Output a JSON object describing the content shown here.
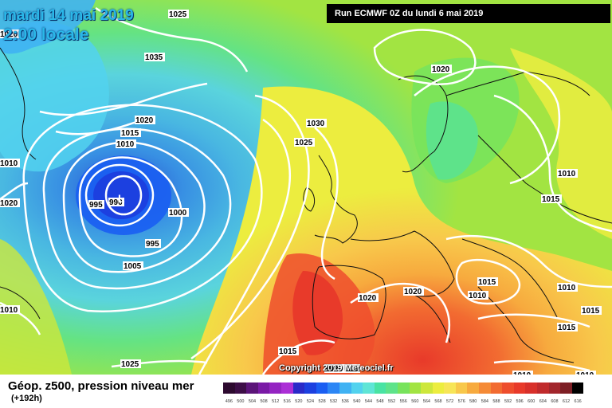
{
  "header": {
    "date": "mardi 14 mai 2019",
    "time": "2:00 locale",
    "run": "Run ECMWF 0Z du lundi 6 mai 2019"
  },
  "copyright": "Copyright 2019 Meteociel.fr",
  "footer": {
    "title": "Géop. z500, pression niveau mer",
    "subtitle": "(+192h)"
  },
  "legend": {
    "labels": [
      "496",
      "500",
      "504",
      "508",
      "512",
      "516",
      "520",
      "524",
      "528",
      "532",
      "536",
      "540",
      "544",
      "548",
      "552",
      "556",
      "560",
      "564",
      "568",
      "572",
      "576",
      "580",
      "584",
      "588",
      "592",
      "596",
      "600",
      "604",
      "608",
      "612",
      "616"
    ],
    "colors": [
      "#2d0a2f",
      "#3d0e47",
      "#5b1479",
      "#7a1aa6",
      "#9424c2",
      "#ab2fd6",
      "#2a2ac8",
      "#1c40e0",
      "#1a5ef2",
      "#2c86f5",
      "#3fb2f3",
      "#52d2ee",
      "#5fe5d6",
      "#49e3a3",
      "#5ee38a",
      "#78e35c",
      "#a2e442",
      "#cde73b",
      "#eced3f",
      "#f7e557",
      "#f8c84b",
      "#f7aa3e",
      "#f58a36",
      "#f26b31",
      "#ee4e2d",
      "#e83a2a",
      "#d8302a",
      "#c02a2c",
      "#a2262c",
      "#7d1f25",
      "#000000"
    ]
  },
  "isobars": [
    {
      "label": "1025",
      "color": "#ffffff"
    },
    {
      "label": "1035",
      "color": "#ffffff"
    },
    {
      "label": "1020",
      "color": "#ffffff"
    },
    {
      "label": "1015",
      "color": "#ffffff"
    },
    {
      "label": "1010",
      "color": "#ffffff"
    },
    {
      "label": "995",
      "color": "#ffffff"
    },
    {
      "label": "990",
      "color": "#ffffff"
    },
    {
      "label": "1000",
      "color": "#ffffff"
    },
    {
      "label": "995",
      "color": "#ffffff"
    },
    {
      "label": "1005",
      "color": "#ffffff"
    },
    {
      "label": "1020",
      "color": "#ffffff"
    },
    {
      "label": "1010",
      "color": "#ffffff"
    },
    {
      "label": "1030",
      "color": "#ffffff"
    },
    {
      "label": "1025",
      "color": "#ffffff"
    },
    {
      "label": "1020",
      "color": "#ffffff"
    },
    {
      "label": "1010",
      "color": "#ffffff"
    },
    {
      "label": "1015",
      "color": "#ffffff"
    },
    {
      "label": "1020",
      "color": "#ffffff"
    },
    {
      "label": "1020",
      "color": "#ffffff"
    },
    {
      "label": "1015",
      "color": "#ffffff"
    },
    {
      "label": "1010",
      "color": "#ffffff"
    },
    {
      "label": "1010",
      "color": "#ffffff"
    },
    {
      "label": "1015",
      "color": "#ffffff"
    },
    {
      "label": "1015",
      "color": "#ffffff"
    },
    {
      "label": "1015",
      "color": "#ffffff"
    },
    {
      "label": "1020",
      "color": "#ffffff"
    },
    {
      "label": "015",
      "color": "#ffffff"
    },
    {
      "label": "1025",
      "color": "#ffffff"
    },
    {
      "label": "1010",
      "color": "#ffffff"
    },
    {
      "label": "1010",
      "color": "#ffffff"
    },
    {
      "label": "1010",
      "color": "#ffffff"
    },
    {
      "label": "1020",
      "color": "#ffffff"
    }
  ]
}
